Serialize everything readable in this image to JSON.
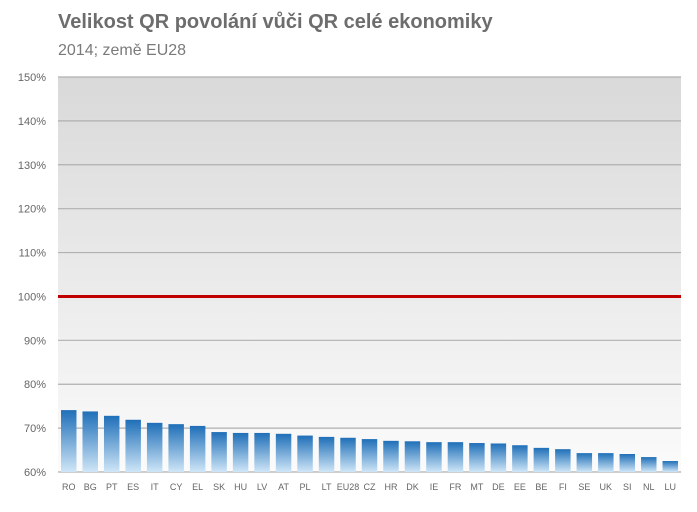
{
  "chart_data": {
    "type": "bar",
    "title": "Velikost QR povolání vůči QR celé ekonomiky",
    "subtitle": "2014; země EU28",
    "xlabel": "",
    "ylabel": "",
    "ylim": [
      60,
      150
    ],
    "yticks": [
      60,
      70,
      80,
      90,
      100,
      110,
      120,
      130,
      140,
      150
    ],
    "ytick_labels": [
      "60%",
      "70%",
      "80%",
      "90%",
      "100%",
      "110%",
      "120%",
      "130%",
      "140%",
      "150%"
    ],
    "grid": true,
    "reference_line": {
      "value": 100,
      "color": "#c00000"
    },
    "bar_color_top": "#1f6fb8",
    "bar_color_bottom": "#cfe6f7",
    "plot_background_top": "#d9d9d9",
    "plot_background_bottom": "#fbfbfb",
    "categories": [
      "RO",
      "BG",
      "PT",
      "ES",
      "IT",
      "CY",
      "EL",
      "SK",
      "HU",
      "LV",
      "AT",
      "PL",
      "LT",
      "EU28",
      "CZ",
      "HR",
      "DK",
      "IE",
      "FR",
      "MT",
      "DE",
      "EE",
      "BE",
      "FI",
      "SE",
      "UK",
      "SI",
      "NL",
      "LU"
    ],
    "values": [
      74.1,
      73.8,
      72.8,
      71.9,
      71.2,
      70.9,
      70.5,
      69.1,
      68.9,
      68.9,
      68.7,
      68.3,
      68.0,
      67.8,
      67.5,
      67.1,
      67.0,
      66.8,
      66.8,
      66.6,
      66.5,
      66.1,
      65.5,
      65.2,
      64.3,
      64.3,
      64.1,
      63.4,
      62.5
    ]
  }
}
